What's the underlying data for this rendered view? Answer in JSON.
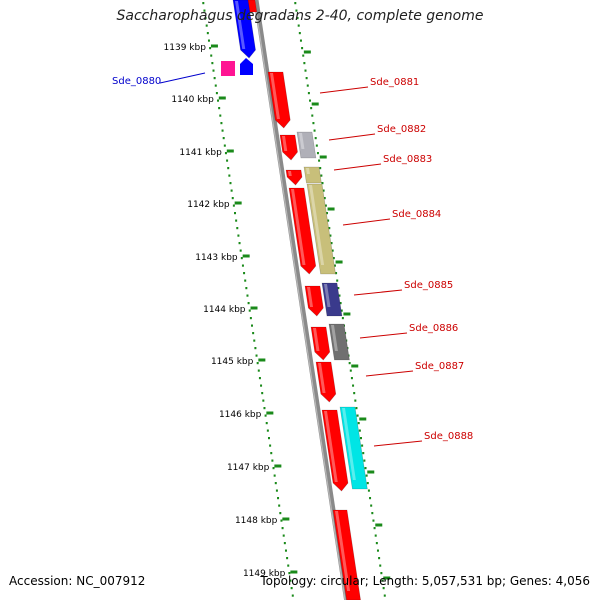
{
  "title": "Saccharophagus degradans 2-40, complete genome",
  "footer": {
    "accession": "Accession: NC_007912",
    "summary": "Topology: circular; Length: 5,057,531 bp; Genes: 4,056"
  },
  "colors": {
    "scale_dots": "#1a8a1a",
    "backbone": "#8a8a8a",
    "gene_label_red": "#cc0000",
    "gene_label_blue": "#0000cc"
  },
  "scale": {
    "ticks": [
      {
        "label": "1139 kbp"
      },
      {
        "label": "1140 kbp"
      },
      {
        "label": "1141 kbp"
      },
      {
        "label": "1142 kbp"
      },
      {
        "label": "1143 kbp"
      },
      {
        "label": "1144 kbp"
      },
      {
        "label": "1145 kbp"
      },
      {
        "label": "1146 kbp"
      },
      {
        "label": "1147 kbp"
      },
      {
        "label": "1148 kbp"
      },
      {
        "label": "1149 kbp"
      }
    ]
  },
  "genes": [
    {
      "label": "Sde_0880",
      "label_color": "blue",
      "feature_color": "#0000ff",
      "cog_color": "#ff1493"
    },
    {
      "label": "Sde_0881",
      "label_color": "red",
      "feature_color": "#ff0000",
      "cog_color": null
    },
    {
      "label": "Sde_0882",
      "label_color": "red",
      "feature_color": "#ff0000",
      "cog_color": "#b0b0b8"
    },
    {
      "label": "Sde_0883",
      "label_color": "red",
      "feature_color": "#ff0000",
      "cog_color": "#c8bf7a"
    },
    {
      "label": "Sde_0884",
      "label_color": "red",
      "feature_color": "#ff0000",
      "cog_color": "#c8bf7a"
    },
    {
      "label": "Sde_0885",
      "label_color": "red",
      "feature_color": "#ff0000",
      "cog_color": "#3a3a8c"
    },
    {
      "label": "Sde_0886",
      "label_color": "red",
      "feature_color": "#ff0000",
      "cog_color": "#707070"
    },
    {
      "label": "Sde_0887",
      "label_color": "red",
      "feature_color": "#ff0000",
      "cog_color": null
    },
    {
      "label": "Sde_0888",
      "label_color": "red",
      "feature_color": "#ff0000",
      "cog_color": "#00e5e5"
    }
  ]
}
